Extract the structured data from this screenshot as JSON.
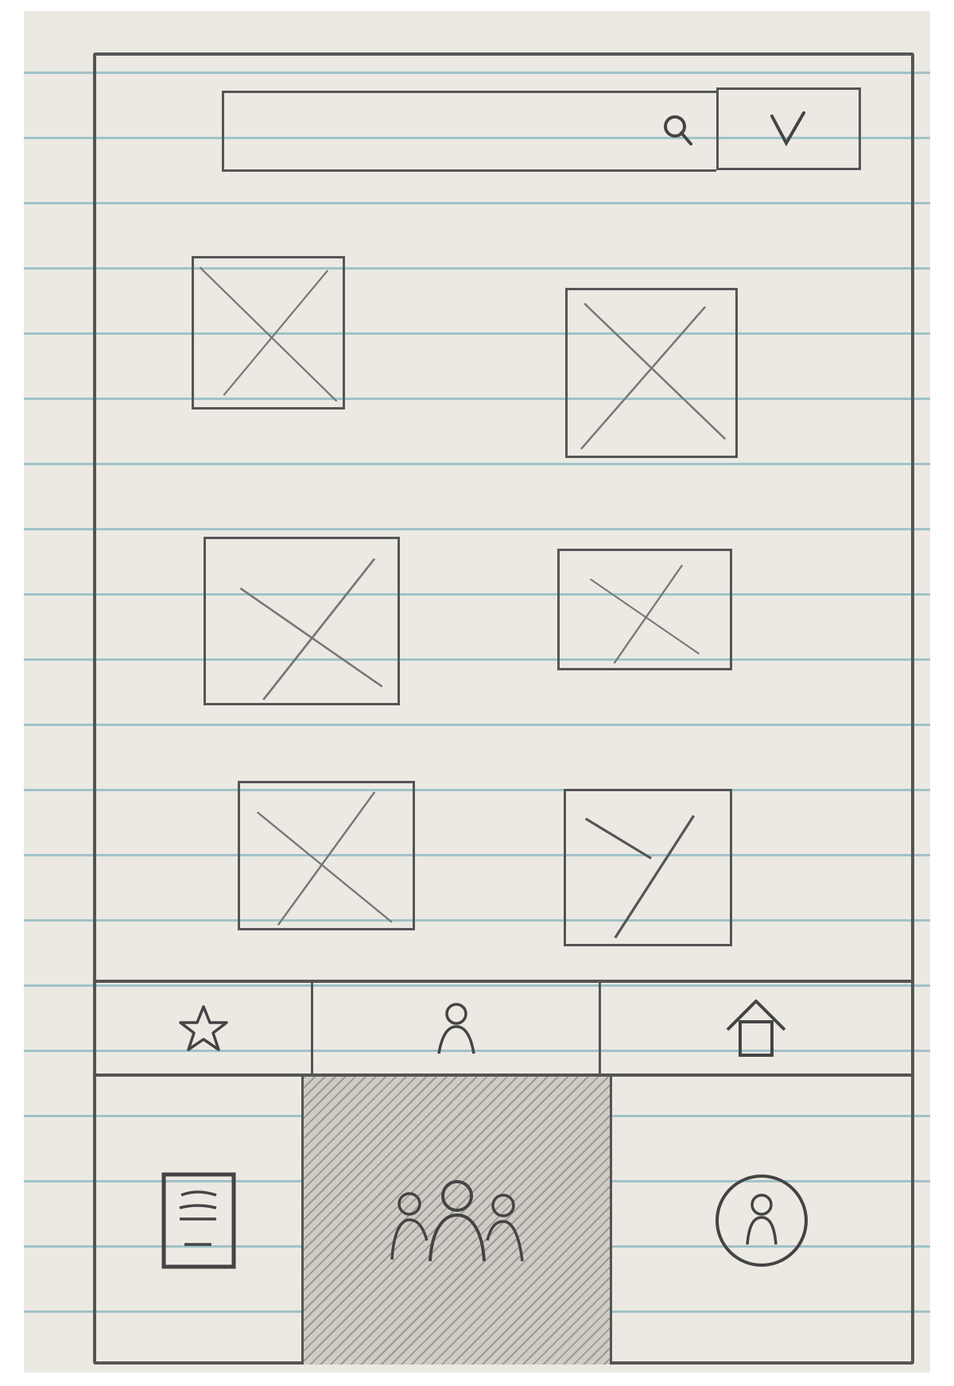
{
  "search": {
    "value": "",
    "icon": "search-icon"
  },
  "dropdown": {
    "icon": "chevron-down-icon"
  },
  "grid": {
    "items": [
      {
        "icon": "image-placeholder-icon"
      },
      {
        "icon": "image-placeholder-icon"
      },
      {
        "icon": "image-placeholder-icon"
      },
      {
        "icon": "image-placeholder-icon"
      },
      {
        "icon": "image-placeholder-icon"
      },
      {
        "icon": "image-placeholder-icon"
      }
    ]
  },
  "nav": {
    "items": [
      {
        "icon": "star-icon"
      },
      {
        "icon": "person-icon"
      },
      {
        "icon": "home-icon"
      }
    ]
  },
  "tabbar": {
    "items": [
      {
        "icon": "document-icon",
        "selected": false
      },
      {
        "icon": "group-icon",
        "selected": true
      },
      {
        "icon": "profile-icon",
        "selected": false
      }
    ]
  },
  "colors": {
    "pencil": "#555555",
    "paper": "#ece9e3",
    "rule_line": "#9fc3c8"
  }
}
